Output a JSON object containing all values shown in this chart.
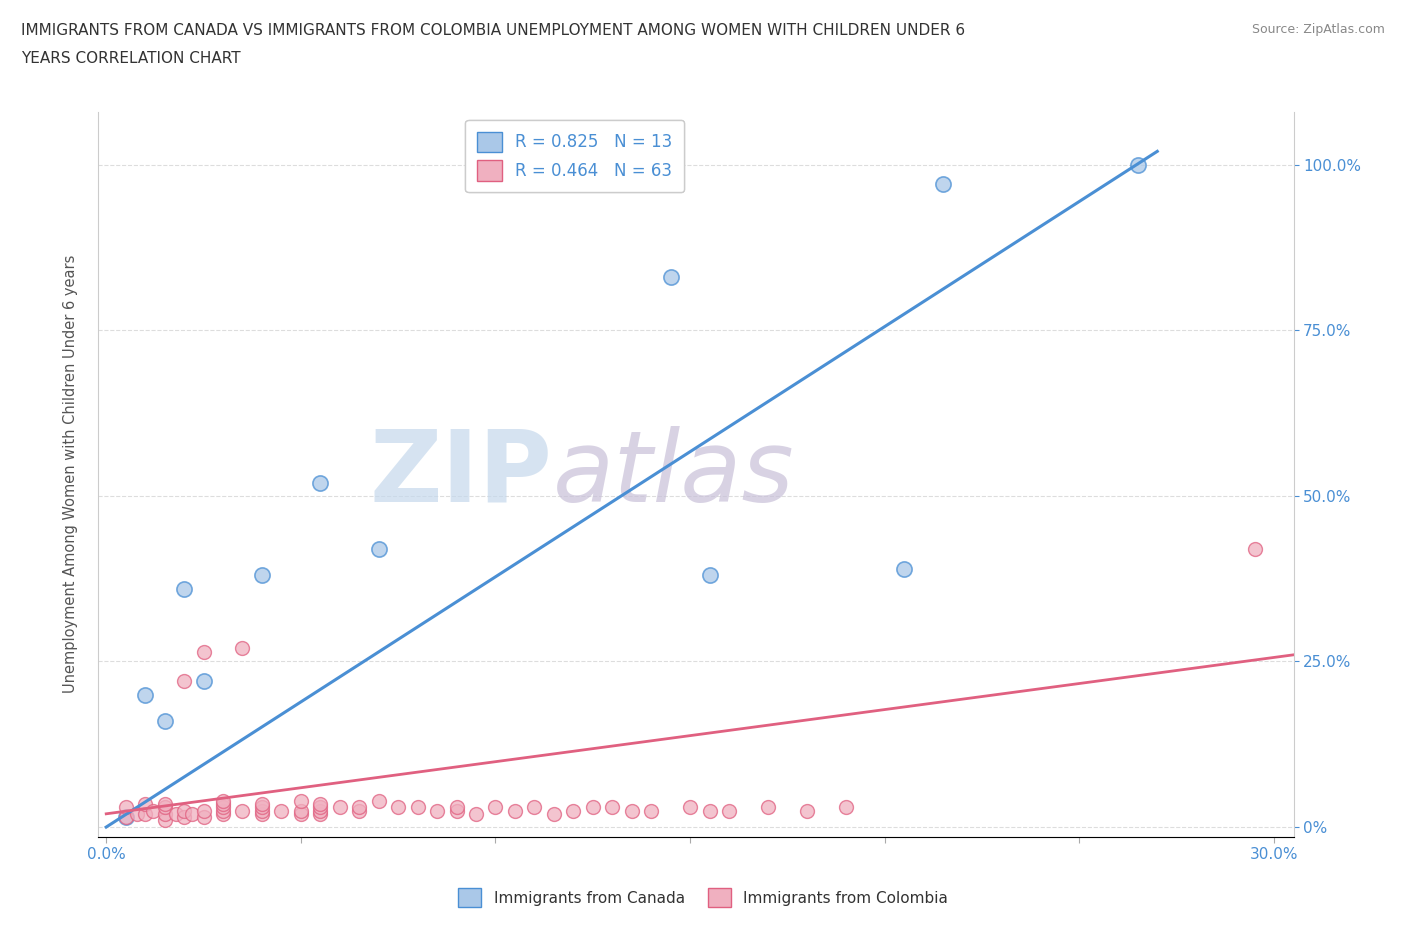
{
  "title_line1": "IMMIGRANTS FROM CANADA VS IMMIGRANTS FROM COLOMBIA UNEMPLOYMENT AMONG WOMEN WITH CHILDREN UNDER 6",
  "title_line2": "YEARS CORRELATION CHART",
  "source_text": "Source: ZipAtlas.com",
  "ylabel": "Unemployment Among Women with Children Under 6 years",
  "xlim": [
    -0.002,
    0.305
  ],
  "ylim": [
    -0.015,
    1.08
  ],
  "xticks": [
    0.0,
    0.05,
    0.1,
    0.15,
    0.2,
    0.25,
    0.3
  ],
  "xtick_labels": [
    "0.0%",
    "",
    "",
    "",
    "",
    "",
    "30.0%"
  ],
  "yticks": [
    0.0,
    0.25,
    0.5,
    0.75,
    1.0
  ],
  "ytick_labels": [
    "0%",
    "25.0%",
    "50.0%",
    "75.0%",
    "100.0%"
  ],
  "canada_color": "#aac8e8",
  "canada_line_color": "#4a8fd4",
  "colombia_color": "#f0b0c0",
  "colombia_line_color": "#e06080",
  "canada_R": 0.825,
  "canada_N": 13,
  "colombia_R": 0.464,
  "colombia_N": 63,
  "watermark_zip": "ZIP",
  "watermark_atlas": "atlas",
  "watermark_color_zip": "#c5d8ec",
  "watermark_color_atlas": "#c8c0d8",
  "legend_label_canada": "Immigrants from Canada",
  "legend_label_colombia": "Immigrants from Colombia",
  "canada_scatter_x": [
    0.005,
    0.01,
    0.015,
    0.02,
    0.025,
    0.04,
    0.055,
    0.07,
    0.145,
    0.155,
    0.205,
    0.215,
    0.265
  ],
  "canada_scatter_y": [
    0.015,
    0.2,
    0.16,
    0.36,
    0.22,
    0.38,
    0.52,
    0.42,
    0.83,
    0.38,
    0.39,
    0.97,
    1.0
  ],
  "colombia_scatter_x": [
    0.005,
    0.005,
    0.008,
    0.01,
    0.01,
    0.012,
    0.015,
    0.015,
    0.015,
    0.015,
    0.018,
    0.02,
    0.02,
    0.02,
    0.022,
    0.025,
    0.025,
    0.025,
    0.03,
    0.03,
    0.03,
    0.03,
    0.03,
    0.035,
    0.035,
    0.04,
    0.04,
    0.04,
    0.04,
    0.045,
    0.05,
    0.05,
    0.05,
    0.055,
    0.055,
    0.055,
    0.055,
    0.06,
    0.065,
    0.065,
    0.07,
    0.075,
    0.08,
    0.085,
    0.09,
    0.09,
    0.095,
    0.1,
    0.105,
    0.11,
    0.115,
    0.12,
    0.125,
    0.13,
    0.135,
    0.14,
    0.15,
    0.155,
    0.16,
    0.17,
    0.18,
    0.19,
    0.295
  ],
  "colombia_scatter_y": [
    0.015,
    0.03,
    0.02,
    0.02,
    0.035,
    0.025,
    0.01,
    0.02,
    0.03,
    0.035,
    0.02,
    0.015,
    0.025,
    0.22,
    0.02,
    0.015,
    0.025,
    0.265,
    0.02,
    0.025,
    0.03,
    0.035,
    0.04,
    0.025,
    0.27,
    0.02,
    0.025,
    0.03,
    0.035,
    0.025,
    0.02,
    0.025,
    0.04,
    0.02,
    0.025,
    0.03,
    0.035,
    0.03,
    0.025,
    0.03,
    0.04,
    0.03,
    0.03,
    0.025,
    0.025,
    0.03,
    0.02,
    0.03,
    0.025,
    0.03,
    0.02,
    0.025,
    0.03,
    0.03,
    0.025,
    0.025,
    0.03,
    0.025,
    0.025,
    0.03,
    0.025,
    0.03,
    0.42
  ],
  "canada_trend_x": [
    0.0,
    0.27
  ],
  "canada_trend_y": [
    0.0,
    1.02
  ],
  "colombia_trend_x": [
    0.0,
    0.305
  ],
  "colombia_trend_y": [
    0.02,
    0.26
  ],
  "background_color": "#ffffff",
  "grid_color": "#dddddd",
  "scatter_size_canada": 120,
  "scatter_size_colombia": 100
}
